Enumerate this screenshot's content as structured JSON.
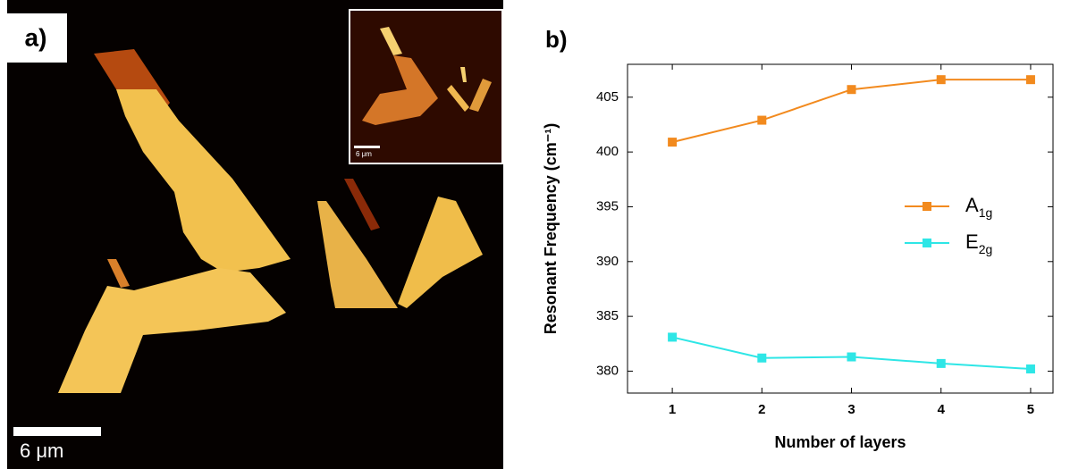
{
  "image_panel": {
    "label": "a)",
    "scale_bar": "6 μm",
    "inset_scale_bar": "6 μm"
  },
  "chart_data": {
    "type": "line",
    "panel_label": "b)",
    "x_label": "Number of layers",
    "y_label": "Resonant Frequency (cm⁻¹)",
    "x": [
      1,
      2,
      3,
      4,
      5
    ],
    "series": [
      {
        "name": "A1g",
        "color": "#f28a1e",
        "values": [
          400.9,
          402.9,
          405.7,
          406.6,
          406.6
        ]
      },
      {
        "name": "E2g",
        "color": "#2ee6e6",
        "values": [
          383.1,
          381.2,
          381.3,
          380.7,
          380.2
        ]
      }
    ],
    "xlim": [
      0.5,
      5.25
    ],
    "xticks": [
      1,
      2,
      3,
      4,
      5
    ],
    "ylim": [
      378,
      408
    ],
    "yticks": [
      380,
      385,
      390,
      395,
      400,
      405
    ]
  }
}
